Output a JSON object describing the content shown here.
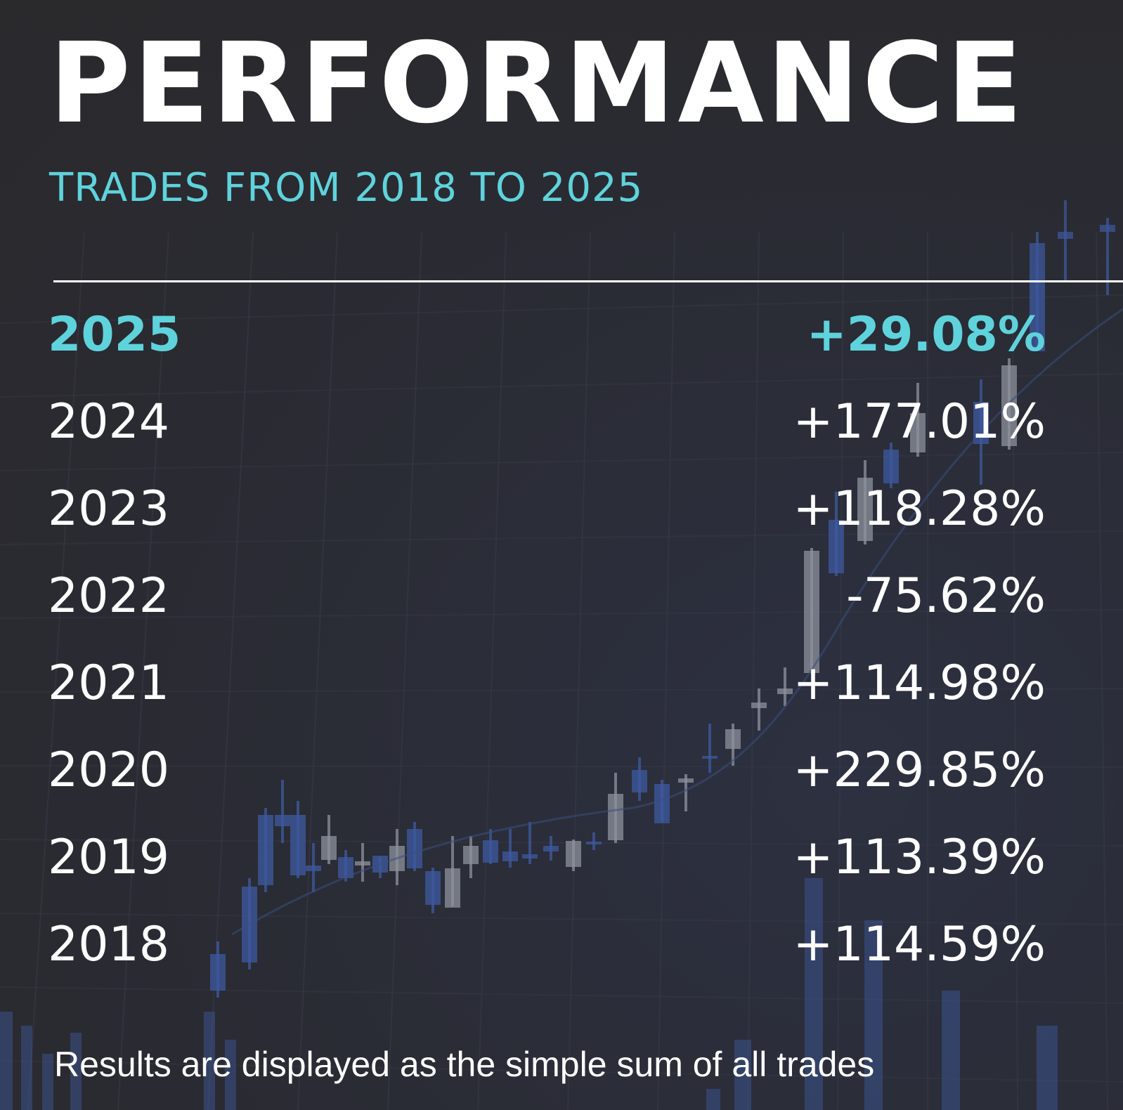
{
  "header": {
    "title": "PERFORMANCE",
    "subtitle": "TRADES FROM 2018 TO 2025"
  },
  "results": [
    {
      "year": "2025",
      "value": "+29.08%",
      "highlight": true
    },
    {
      "year": "2024",
      "value": "+177.01%",
      "highlight": false
    },
    {
      "year": "2023",
      "value": "+118.28%",
      "highlight": false
    },
    {
      "year": "2022",
      "value": "-75.62%",
      "highlight": false
    },
    {
      "year": "2021",
      "value": "+114.98%",
      "highlight": false
    },
    {
      "year": "2020",
      "value": "+229.85%",
      "highlight": false
    },
    {
      "year": "2019",
      "value": "+113.39%",
      "highlight": false
    },
    {
      "year": "2018",
      "value": "+114.59%",
      "highlight": false
    }
  ],
  "footer": {
    "note": "Results are displayed as the simple sum of all trades"
  },
  "colors": {
    "background": "#2a2b30",
    "accent": "#5fd3dc",
    "text": "#ffffff",
    "candle_blue": "#3e5aa0",
    "candle_grey": "#8e929c"
  }
}
